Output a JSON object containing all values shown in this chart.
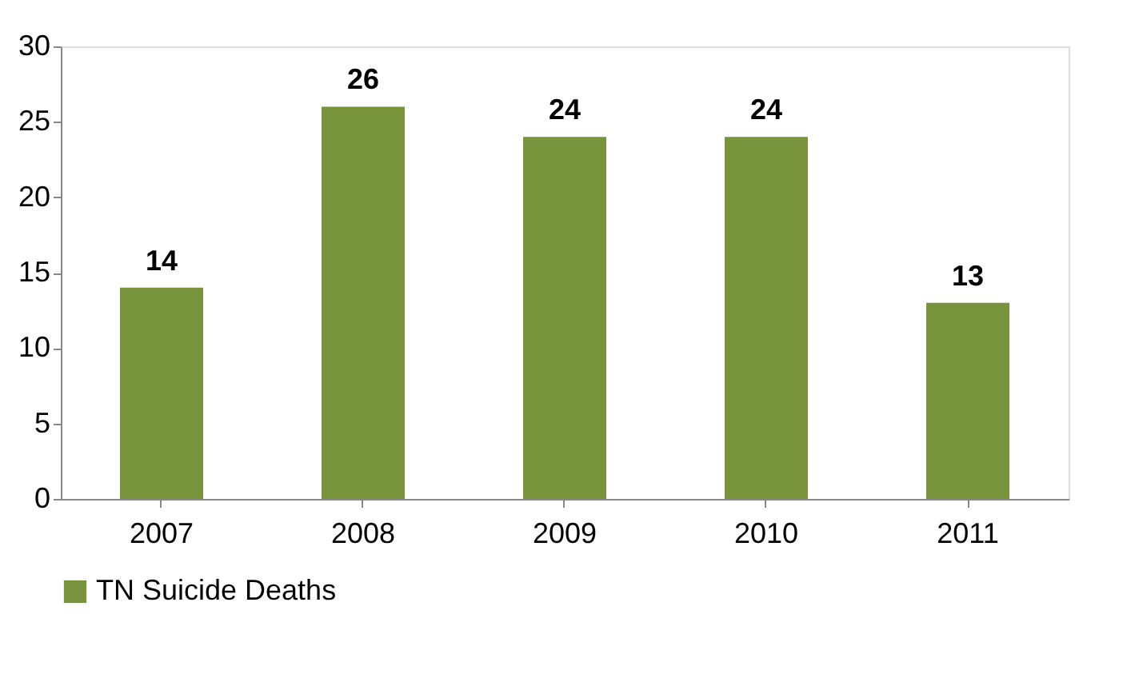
{
  "chart_data": {
    "type": "bar",
    "categories": [
      "2007",
      "2008",
      "2009",
      "2010",
      "2011"
    ],
    "series": [
      {
        "name": "TN Suicide Deaths",
        "color": "#77933c",
        "values": [
          14,
          26,
          24,
          24,
          13
        ]
      }
    ],
    "ylim": [
      0,
      30
    ],
    "yticks": [
      0,
      5,
      10,
      15,
      20,
      25,
      30
    ],
    "grid": false,
    "legend": "bottom",
    "data_labels": true
  }
}
